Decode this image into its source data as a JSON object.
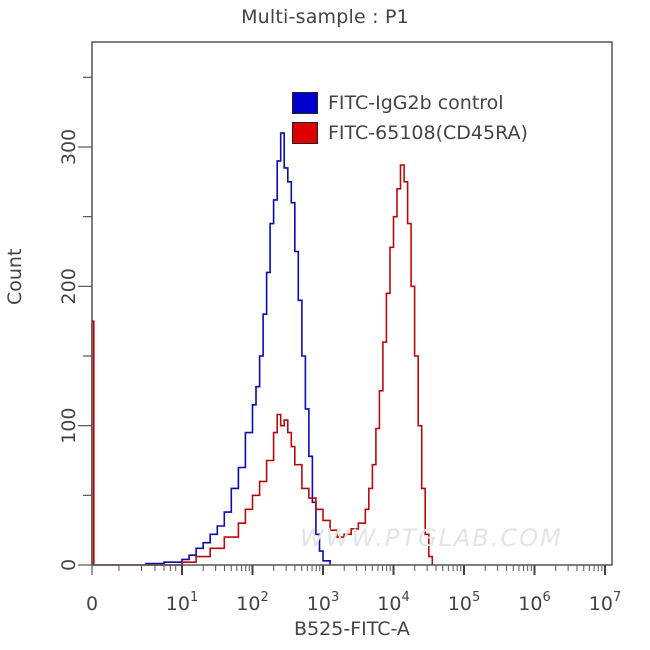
{
  "chart_data": {
    "type": "line",
    "title": "Multi-sample : P1",
    "xlabel": "B525-FITC-A",
    "ylabel": "Count",
    "x_scale": "log (biexponential, with 0)",
    "x_ticks": [
      "0",
      "10^1",
      "10^2",
      "10^3",
      "10^4",
      "10^5",
      "10^6",
      "10^7"
    ],
    "x_tick_labels": [
      {
        "base": "0",
        "exp": ""
      },
      {
        "base": "10",
        "exp": "1"
      },
      {
        "base": "10",
        "exp": "2"
      },
      {
        "base": "10",
        "exp": "3"
      },
      {
        "base": "10",
        "exp": "4"
      },
      {
        "base": "10",
        "exp": "5"
      },
      {
        "base": "10",
        "exp": "6"
      },
      {
        "base": "10",
        "exp": "7"
      }
    ],
    "y_ticks": [
      0,
      100,
      200,
      300
    ],
    "ylim": [
      0,
      375
    ],
    "grid": false,
    "legend_position": "top-right inside",
    "series": [
      {
        "name": "FITC-IgG2b control",
        "color": "#0000cc",
        "points_log10x_count": [
          [
            0.6,
            1
          ],
          [
            0.8,
            2
          ],
          [
            1.0,
            4
          ],
          [
            1.1,
            7
          ],
          [
            1.2,
            12
          ],
          [
            1.3,
            16
          ],
          [
            1.4,
            22
          ],
          [
            1.5,
            28
          ],
          [
            1.6,
            38
          ],
          [
            1.7,
            55
          ],
          [
            1.8,
            70
          ],
          [
            1.9,
            95
          ],
          [
            2.0,
            115
          ],
          [
            2.05,
            128
          ],
          [
            2.1,
            150
          ],
          [
            2.15,
            180
          ],
          [
            2.2,
            210
          ],
          [
            2.25,
            245
          ],
          [
            2.3,
            262
          ],
          [
            2.35,
            290
          ],
          [
            2.4,
            310
          ],
          [
            2.45,
            285
          ],
          [
            2.5,
            275
          ],
          [
            2.55,
            260
          ],
          [
            2.6,
            225
          ],
          [
            2.65,
            190
          ],
          [
            2.7,
            150
          ],
          [
            2.75,
            112
          ],
          [
            2.8,
            78
          ],
          [
            2.85,
            45
          ],
          [
            2.9,
            22
          ],
          [
            2.95,
            10
          ],
          [
            3.0,
            3
          ],
          [
            3.1,
            0
          ]
        ]
      },
      {
        "name": "FITC-65108(CD45RA)",
        "color": "#dd0000",
        "points_log10x_count": [
          [
            0.0,
            175
          ],
          [
            0.02,
            0
          ],
          [
            1.0,
            2
          ],
          [
            1.2,
            6
          ],
          [
            1.4,
            12
          ],
          [
            1.6,
            20
          ],
          [
            1.8,
            30
          ],
          [
            1.9,
            40
          ],
          [
            2.0,
            50
          ],
          [
            2.1,
            60
          ],
          [
            2.2,
            75
          ],
          [
            2.3,
            95
          ],
          [
            2.35,
            108
          ],
          [
            2.4,
            100
          ],
          [
            2.45,
            104
          ],
          [
            2.5,
            95
          ],
          [
            2.55,
            85
          ],
          [
            2.6,
            72
          ],
          [
            2.7,
            55
          ],
          [
            2.8,
            48
          ],
          [
            2.9,
            40
          ],
          [
            3.0,
            32
          ],
          [
            3.1,
            25
          ],
          [
            3.2,
            20
          ],
          [
            3.3,
            22
          ],
          [
            3.4,
            26
          ],
          [
            3.5,
            30
          ],
          [
            3.6,
            40
          ],
          [
            3.65,
            55
          ],
          [
            3.7,
            72
          ],
          [
            3.75,
            98
          ],
          [
            3.8,
            125
          ],
          [
            3.85,
            160
          ],
          [
            3.9,
            195
          ],
          [
            3.95,
            228
          ],
          [
            4.0,
            250
          ],
          [
            4.05,
            270
          ],
          [
            4.1,
            287
          ],
          [
            4.15,
            275
          ],
          [
            4.2,
            245
          ],
          [
            4.25,
            200
          ],
          [
            4.3,
            150
          ],
          [
            4.35,
            100
          ],
          [
            4.4,
            55
          ],
          [
            4.45,
            22
          ],
          [
            4.5,
            6
          ],
          [
            4.55,
            0
          ]
        ]
      }
    ]
  },
  "legend": {
    "items": [
      {
        "label": "FITC-IgG2b control",
        "color": "#0000cc"
      },
      {
        "label": "FITC-65108(CD45RA)",
        "color": "#dd0000"
      }
    ]
  },
  "watermark": "WWW.PTGLAB.COM"
}
